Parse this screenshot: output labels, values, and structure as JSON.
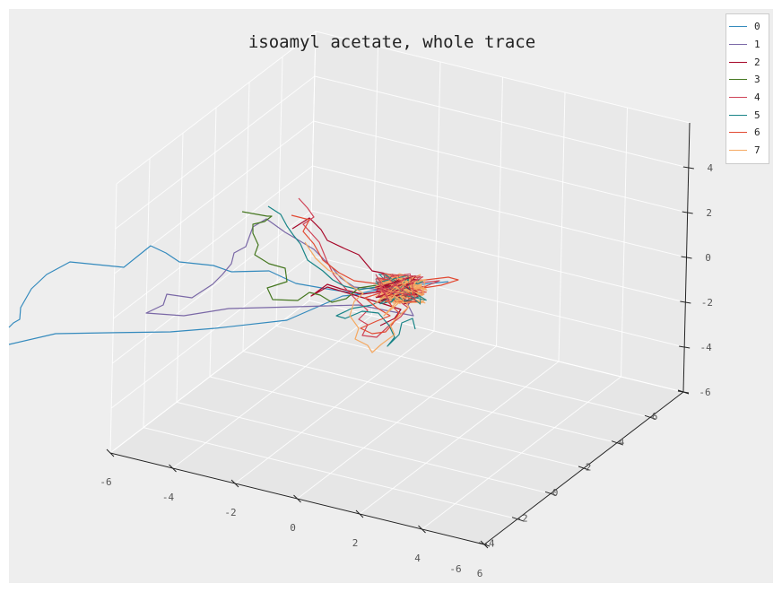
{
  "chart_data": {
    "type": "line3d",
    "title": "isoamyl acetate, whole trace",
    "axes": {
      "x": {
        "ticks": [
          -6,
          -4,
          -2,
          0,
          2,
          4,
          6
        ],
        "range": [
          -6,
          6
        ]
      },
      "y": {
        "ticks": [
          -6,
          -4,
          -2,
          0,
          2,
          4,
          6
        ],
        "range": [
          -6,
          6
        ]
      },
      "z": {
        "ticks": [
          -6,
          -4,
          -2,
          0,
          2,
          4
        ],
        "range": [
          -6,
          6
        ]
      }
    },
    "grid": true,
    "legend_position": "top-right",
    "series": [
      {
        "name": "0",
        "color": "#348ABD"
      },
      {
        "name": "1",
        "color": "#7A68A6"
      },
      {
        "name": "2",
        "color": "#A60628"
      },
      {
        "name": "3",
        "color": "#467821"
      },
      {
        "name": "4",
        "color": "#CF4457"
      },
      {
        "name": "5",
        "color": "#188487"
      },
      {
        "name": "6",
        "color": "#E24A33"
      },
      {
        "name": "7",
        "color": "#F5A962"
      }
    ]
  }
}
